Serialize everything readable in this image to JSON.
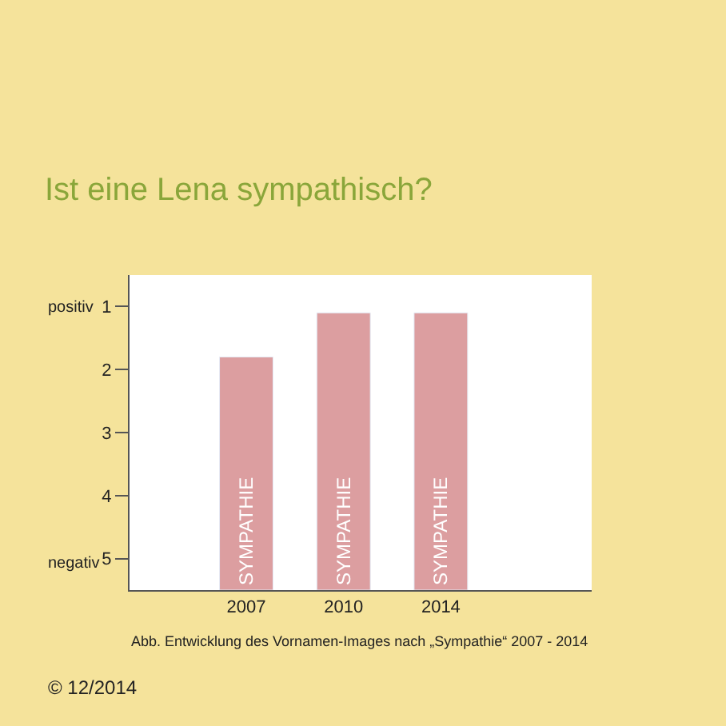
{
  "chart_data": {
    "type": "bar",
    "title": "Ist eine Lena sympathisch?",
    "categories": [
      "2007",
      "2010",
      "2014"
    ],
    "base": [
      5.5,
      5.5,
      5.5
    ],
    "values": [
      -3.7,
      -4.4,
      -4.4
    ],
    "color": "#dc9ea0",
    "value_labels": [
      "SYMPATHIE",
      "SYMPATHIE",
      "SYMPATHIE"
    ],
    "ylim": [
      5.5,
      0.5
    ],
    "yticks": [
      1,
      2,
      3,
      4,
      5
    ],
    "annotations": [
      "positiv",
      "negativ",
      "Abb. Entwicklung des Vornamen-Images nach „Sympathie“ 2007 - 2014",
      "© 12/2014"
    ]
  }
}
